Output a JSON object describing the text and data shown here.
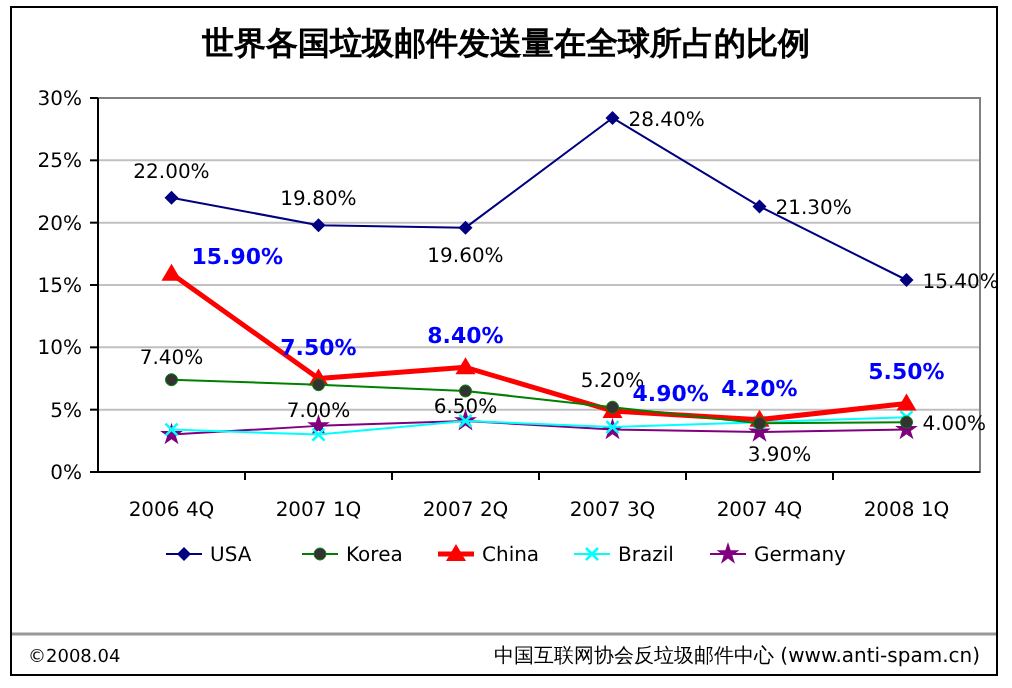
{
  "chart_data": {
    "type": "line",
    "title": "世界各国垃圾邮件发送量在全球所占的比例",
    "categories": [
      "2006 4Q",
      "2007 1Q",
      "2007 2Q",
      "2007 3Q",
      "2007 4Q",
      "2008 1Q"
    ],
    "ylim": [
      0,
      30
    ],
    "yticks": [
      {
        "value": 0,
        "label": "0%"
      },
      {
        "value": 5,
        "label": "5%"
      },
      {
        "value": 10,
        "label": "10%"
      },
      {
        "value": 15,
        "label": "15%"
      },
      {
        "value": 20,
        "label": "20%"
      },
      {
        "value": 25,
        "label": "25%"
      },
      {
        "value": 30,
        "label": "30%"
      }
    ],
    "grid": "y",
    "legend": "bottom",
    "series": [
      {
        "name": "USA",
        "color": "#000080",
        "marker": "diamond",
        "values": [
          22.0,
          19.8,
          19.6,
          28.4,
          21.3,
          15.4
        ],
        "value_labels": [
          "22.00%",
          "19.80%",
          "19.60%",
          "28.40%",
          "21.30%",
          "15.40%"
        ]
      },
      {
        "name": "Korea",
        "color": "#008000",
        "marker": "circle",
        "values": [
          7.4,
          7.0,
          6.5,
          5.2,
          3.9,
          4.0
        ],
        "value_labels": [
          "7.40%",
          "7.00%",
          "6.50%",
          "5.20%",
          "3.90%",
          "4.00%"
        ]
      },
      {
        "name": "China",
        "color": "#ff0000",
        "marker": "triangle",
        "values": [
          15.9,
          7.5,
          8.4,
          4.9,
          4.2,
          5.5
        ],
        "value_labels": [
          "15.90%",
          "7.50%",
          "8.40%",
          "4.90%",
          "4.20%",
          "5.50%"
        ]
      },
      {
        "name": "Brazil",
        "color": "#00ffff",
        "marker": "cross",
        "values": [
          3.4,
          3.0,
          4.1,
          3.6,
          4.0,
          4.4
        ]
      },
      {
        "name": "Germany",
        "color": "#800080",
        "marker": "star",
        "values": [
          3.0,
          3.7,
          4.1,
          3.4,
          3.2,
          3.4
        ]
      }
    ],
    "annotations": [
      "©2008.04",
      "中国互联网协会反垃圾邮件中心 (www.anti-spam.cn)"
    ]
  }
}
